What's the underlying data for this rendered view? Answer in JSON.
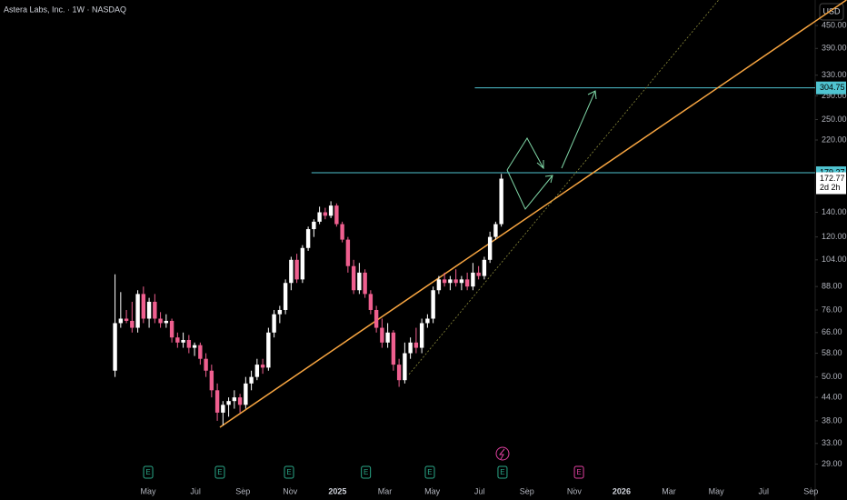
{
  "chart_data": {
    "type": "candlestick",
    "title": "Astera Labs, Inc. · 1W · NASDAQ",
    "currency": "USD",
    "log_scale": true,
    "up_color": "#ffffff",
    "down_color": "#ef5f8f",
    "x": [
      2.6,
      2.84,
      3.08,
      3.32,
      3.56,
      3.8,
      4.04,
      4.28,
      4.52,
      4.76,
      5,
      5.24,
      5.48,
      5.72,
      5.96,
      6.2,
      6.44,
      6.68,
      6.92,
      7.16,
      7.4,
      7.64,
      7.88,
      8.12,
      8.36,
      8.6,
      8.84,
      9.08,
      9.32,
      9.56,
      9.8,
      10.04,
      10.28,
      10.52,
      10.76,
      11,
      11.24,
      11.48,
      11.72,
      11.96,
      12.2,
      12.44,
      12.68,
      12.92,
      13.16,
      13.4,
      13.64,
      13.88,
      14.12,
      14.36,
      14.6,
      14.84,
      15.08,
      15.32,
      15.56,
      15.8,
      16.04,
      16.28,
      16.52,
      16.76,
      17,
      17.24,
      17.48,
      17.72,
      17.96,
      18.2,
      18.44,
      18.68,
      18.92
    ],
    "open": [
      52,
      70,
      72,
      71,
      68,
      84,
      72,
      80,
      72,
      70,
      71,
      64,
      62,
      63,
      60,
      61,
      56,
      52,
      46,
      40,
      42,
      43,
      44,
      42,
      48,
      50,
      54,
      53,
      66,
      74,
      76,
      90,
      104,
      92,
      112,
      126,
      132,
      140,
      137,
      146,
      130,
      118,
      100,
      86,
      96,
      84,
      76,
      68,
      62,
      66,
      54,
      49,
      58,
      62,
      60,
      70,
      72,
      86,
      92,
      90,
      92,
      90,
      92,
      88,
      96,
      94,
      104,
      120,
      130
    ],
    "high": [
      95,
      85,
      76,
      80,
      86,
      88,
      82,
      84,
      75,
      74,
      72,
      66,
      66,
      65,
      62,
      62,
      58,
      54,
      48,
      43,
      44,
      46,
      45,
      50,
      52,
      56,
      56,
      68,
      76,
      78,
      92,
      106,
      108,
      114,
      128,
      134,
      145,
      144,
      150,
      148,
      132,
      120,
      104,
      102,
      98,
      86,
      78,
      72,
      70,
      67,
      56,
      62,
      64,
      68,
      72,
      74,
      88,
      94,
      96,
      94,
      98,
      94,
      96,
      102,
      100,
      106,
      124,
      132,
      178
    ],
    "low": [
      50,
      68,
      70,
      66,
      66,
      70,
      68,
      70,
      68,
      68,
      62,
      60,
      60,
      58,
      57,
      54,
      50,
      44,
      38,
      37,
      39,
      41,
      40,
      41,
      46,
      49,
      51,
      52,
      64,
      70,
      74,
      86,
      90,
      90,
      110,
      120,
      130,
      134,
      135,
      128,
      116,
      96,
      84,
      84,
      82,
      74,
      66,
      60,
      60,
      52,
      47,
      48,
      56,
      58,
      58,
      68,
      70,
      84,
      88,
      86,
      88,
      86,
      86,
      86,
      92,
      92,
      102,
      118,
      128
    ],
    "close": [
      70,
      72,
      71,
      68,
      84,
      72,
      80,
      72,
      70,
      71,
      64,
      62,
      63,
      60,
      61,
      56,
      52,
      46,
      40,
      42,
      43,
      44,
      42,
      48,
      50,
      54,
      53,
      66,
      74,
      76,
      90,
      104,
      92,
      112,
      126,
      132,
      140,
      137,
      146,
      130,
      118,
      100,
      86,
      96,
      84,
      76,
      68,
      62,
      66,
      54,
      49,
      58,
      62,
      60,
      70,
      72,
      86,
      92,
      90,
      92,
      90,
      92,
      88,
      96,
      94,
      104,
      120,
      130,
      172.77
    ],
    "countdown": "2d 2h",
    "xlim": [
      -2.26,
      32.18
    ],
    "ylim": [
      26.7,
      528
    ],
    "xticks": [
      {
        "value": 4,
        "label": "May"
      },
      {
        "value": 6,
        "label": "Jul"
      },
      {
        "value": 8,
        "label": "Sep"
      },
      {
        "value": 10,
        "label": "Nov"
      },
      {
        "value": 12,
        "label": "2025"
      },
      {
        "value": 14,
        "label": "Mar"
      },
      {
        "value": 16,
        "label": "May"
      },
      {
        "value": 18,
        "label": "Jul"
      },
      {
        "value": 20,
        "label": "Sep"
      },
      {
        "value": 22,
        "label": "Nov"
      },
      {
        "value": 24,
        "label": "2026"
      },
      {
        "value": 26,
        "label": "Mar"
      },
      {
        "value": 28,
        "label": "May"
      },
      {
        "value": 30,
        "label": "Jul"
      },
      {
        "value": 32,
        "label": "Sep"
      }
    ],
    "yticks": [
      {
        "value": 450,
        "label": "450.00"
      },
      {
        "value": 390,
        "label": "390.00"
      },
      {
        "value": 330,
        "label": "330.00"
      },
      {
        "value": 290,
        "label": "290.00"
      },
      {
        "value": 250,
        "label": "250.00"
      },
      {
        "value": 220,
        "label": "220.00"
      },
      {
        "value": 140,
        "label": "140.00"
      },
      {
        "value": 120,
        "label": "120.00"
      },
      {
        "value": 104,
        "label": "104.00"
      },
      {
        "value": 88,
        "label": "88.00"
      },
      {
        "value": 76,
        "label": "76.00"
      },
      {
        "value": 66,
        "label": "66.00"
      },
      {
        "value": 58,
        "label": "58.00"
      },
      {
        "value": 50,
        "label": "50.00"
      },
      {
        "value": 44,
        "label": "44.00"
      },
      {
        "value": 38,
        "label": "38.00"
      },
      {
        "value": 33,
        "label": "33.00"
      },
      {
        "value": 29,
        "label": "29.00"
      }
    ],
    "levels": [
      {
        "price": 304.75,
        "x_start": 17.8,
        "color": "#4fc3d0"
      },
      {
        "price": 179.27,
        "x_start": 10.9,
        "color": "#4fc3d0"
      }
    ],
    "trendlines": [
      {
        "x": [
          7.03,
          33.5
        ],
        "price": [
          36.5,
          528
        ],
        "color": "#f7a541",
        "dashed": false
      },
      {
        "x": [
          15.02,
          28.1
        ],
        "price": [
          50.8,
          528
        ],
        "color": "#8a8a3a",
        "dashed": true
      }
    ],
    "events": [
      {
        "x": 4,
        "label": "E",
        "color": "#2aa889"
      },
      {
        "x": 7.03,
        "label": "E",
        "color": "#2aa889"
      },
      {
        "x": 9.95,
        "label": "E",
        "color": "#2aa889"
      },
      {
        "x": 13.2,
        "label": "E",
        "color": "#2aa889"
      },
      {
        "x": 15.9,
        "label": "E",
        "color": "#2aa889"
      },
      {
        "x": 18.97,
        "label": "E",
        "color": "#2aa889"
      },
      {
        "x": 22.2,
        "label": "E",
        "color": "#e040a0"
      }
    ]
  }
}
